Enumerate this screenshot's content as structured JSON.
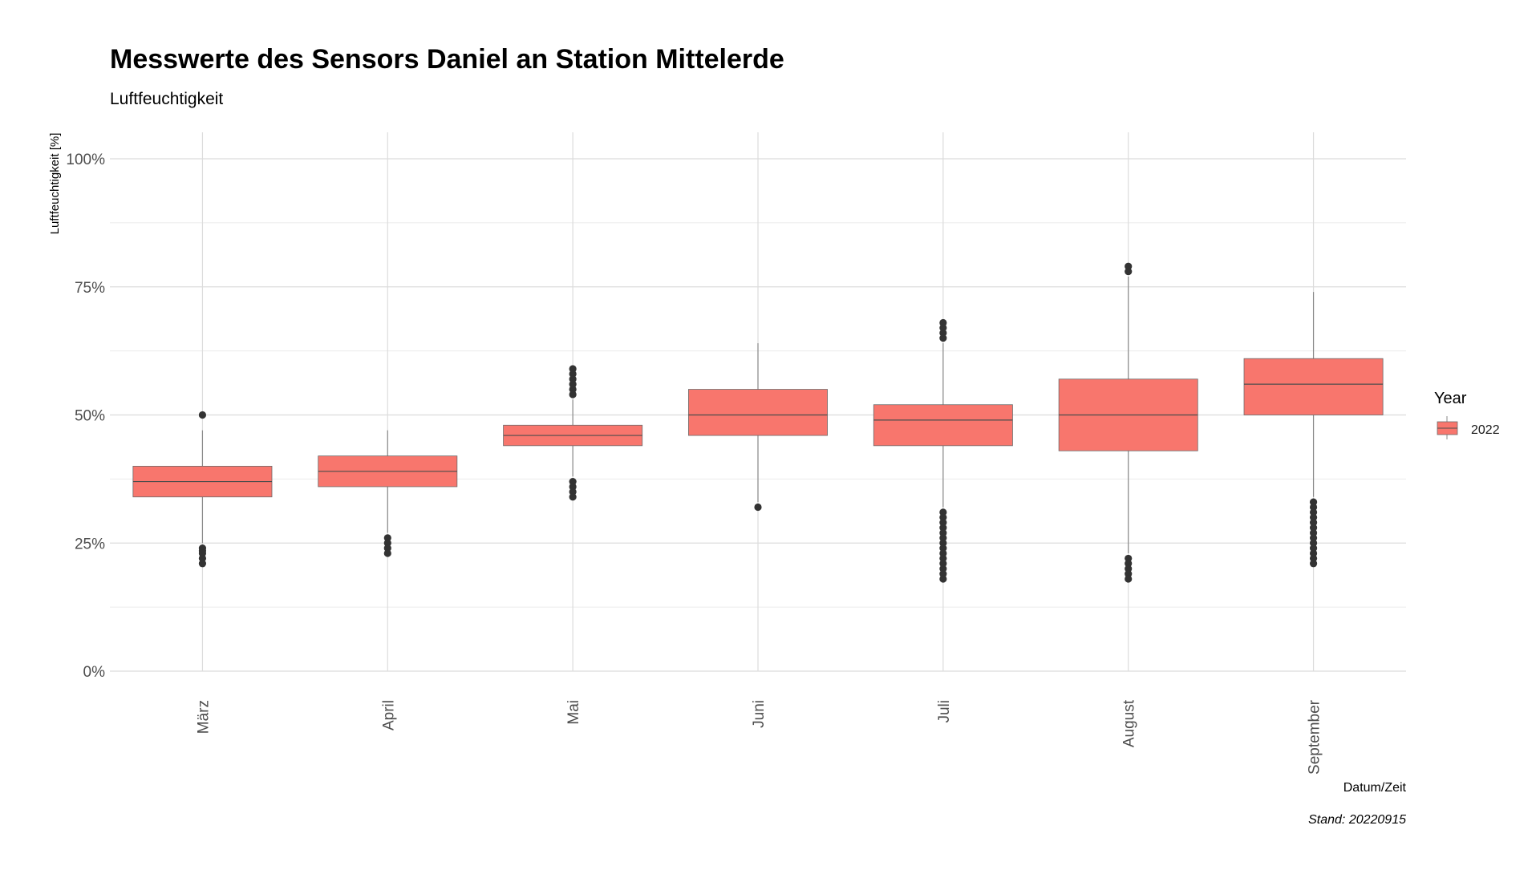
{
  "chart_data": {
    "type": "boxplot",
    "title": "Messwerte des Sensors Daniel an Station Mittelerde",
    "subtitle": "Luftfeuchtigkeit",
    "xlabel": "Datum/Zeit",
    "ylabel": "Luftfeuchtigkeit [%]",
    "caption": "Stand: 20220915",
    "ylim": [
      0,
      100
    ],
    "yticks": [
      0,
      25,
      50,
      75,
      100
    ],
    "ytick_labels": [
      "0%",
      "25%",
      "50%",
      "75%",
      "100%"
    ],
    "grid": true,
    "legend": {
      "title": "Year",
      "position": "right",
      "entries": [
        {
          "label": "2022",
          "color": "#F8766D"
        }
      ]
    },
    "categories": [
      "März",
      "April",
      "Mai",
      "Juni",
      "Juli",
      "August",
      "September"
    ],
    "series": [
      {
        "name": "2022",
        "color": "#F8766D",
        "boxes": [
          {
            "category": "März",
            "whisker_low": 25,
            "q1": 34,
            "median": 37,
            "q3": 40,
            "whisker_high": 47,
            "outliers": [
              50,
              24,
              23.5,
              23,
              22,
              21
            ]
          },
          {
            "category": "April",
            "whisker_low": 27,
            "q1": 36,
            "median": 39,
            "q3": 42,
            "whisker_high": 47,
            "outliers": [
              26,
              25,
              24,
              23
            ]
          },
          {
            "category": "Mai",
            "whisker_low": 38,
            "q1": 44,
            "median": 46,
            "q3": 48,
            "whisker_high": 53,
            "outliers": [
              59,
              58,
              57,
              56,
              55,
              54,
              37,
              36,
              35,
              34
            ]
          },
          {
            "category": "Juni",
            "whisker_low": 33,
            "q1": 46,
            "median": 50,
            "q3": 55,
            "whisker_high": 64,
            "outliers": [
              32
            ]
          },
          {
            "category": "Juli",
            "whisker_low": 32,
            "q1": 44,
            "median": 49,
            "q3": 52,
            "whisker_high": 64,
            "outliers": [
              68,
              67,
              66,
              65,
              31,
              30,
              29,
              28,
              27,
              26,
              25,
              24,
              23,
              22,
              21,
              20,
              19,
              18
            ]
          },
          {
            "category": "August",
            "whisker_low": 23,
            "q1": 43,
            "median": 50,
            "q3": 57,
            "whisker_high": 77,
            "outliers": [
              79,
              78,
              22,
              21,
              20,
              19,
              18
            ]
          },
          {
            "category": "September",
            "whisker_low": 34,
            "q1": 50,
            "median": 56,
            "q3": 61,
            "whisker_high": 74,
            "outliers": [
              33,
              32,
              31,
              30,
              29,
              28,
              27,
              26,
              25,
              24,
              23,
              22,
              21
            ]
          }
        ]
      }
    ]
  }
}
